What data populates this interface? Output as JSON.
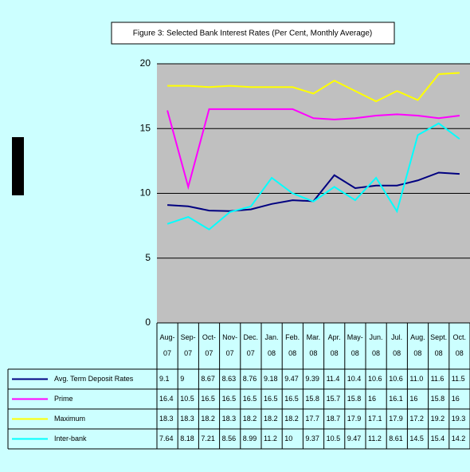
{
  "chart_data": {
    "type": "line",
    "title": "Figure 3: Selected Bank Interest Rates (Per Cent, Monthly Average)",
    "categories": [
      "Aug-07",
      "Sep-07",
      "Oct-07",
      "Nov-07",
      "Dec. 07",
      "Jan. 08",
      "Feb. 08",
      "Mar. 08",
      "Apr. 08",
      "May-08",
      "Jun. 08",
      "Jul. 08",
      "Aug. 08",
      "Sept. 08",
      "Oct. 08"
    ],
    "ylim": [
      0,
      20
    ],
    "yticks": [
      0,
      5,
      10,
      15,
      20
    ],
    "grid": true,
    "series": [
      {
        "name": "Avg. Term Deposit Rates",
        "color": "#000080",
        "values": [
          9.1,
          9,
          8.67,
          8.63,
          8.76,
          9.18,
          9.47,
          9.39,
          11.4,
          10.4,
          10.6,
          10.6,
          11.0,
          11.6,
          11.5
        ],
        "value_labels": [
          "9.1",
          "9",
          "8.67",
          "8.63",
          "8.76",
          "9.18",
          "9.47",
          "9.39",
          "11.4",
          "10.4",
          "10.6",
          "10.6",
          "11.0",
          "11.6",
          "11.5"
        ]
      },
      {
        "name": "Prime",
        "color": "#ff00ff",
        "values": [
          16.4,
          10.5,
          16.5,
          16.5,
          16.5,
          16.5,
          16.5,
          15.8,
          15.7,
          15.8,
          16,
          16.1,
          16,
          15.8,
          16
        ]
      },
      {
        "name": "Maximum",
        "color": "#ffff00",
        "values": [
          18.3,
          18.3,
          18.2,
          18.3,
          18.2,
          18.2,
          18.2,
          17.7,
          18.7,
          17.9,
          17.1,
          17.9,
          17.2,
          19.2,
          19.3
        ]
      },
      {
        "name": "Inter-bank",
        "color": "#00ffff",
        "values": [
          7.64,
          8.18,
          7.21,
          8.56,
          8.99,
          11.2,
          10,
          9.37,
          10.5,
          9.47,
          11.2,
          8.61,
          14.5,
          15.4,
          14.2
        ]
      }
    ]
  }
}
